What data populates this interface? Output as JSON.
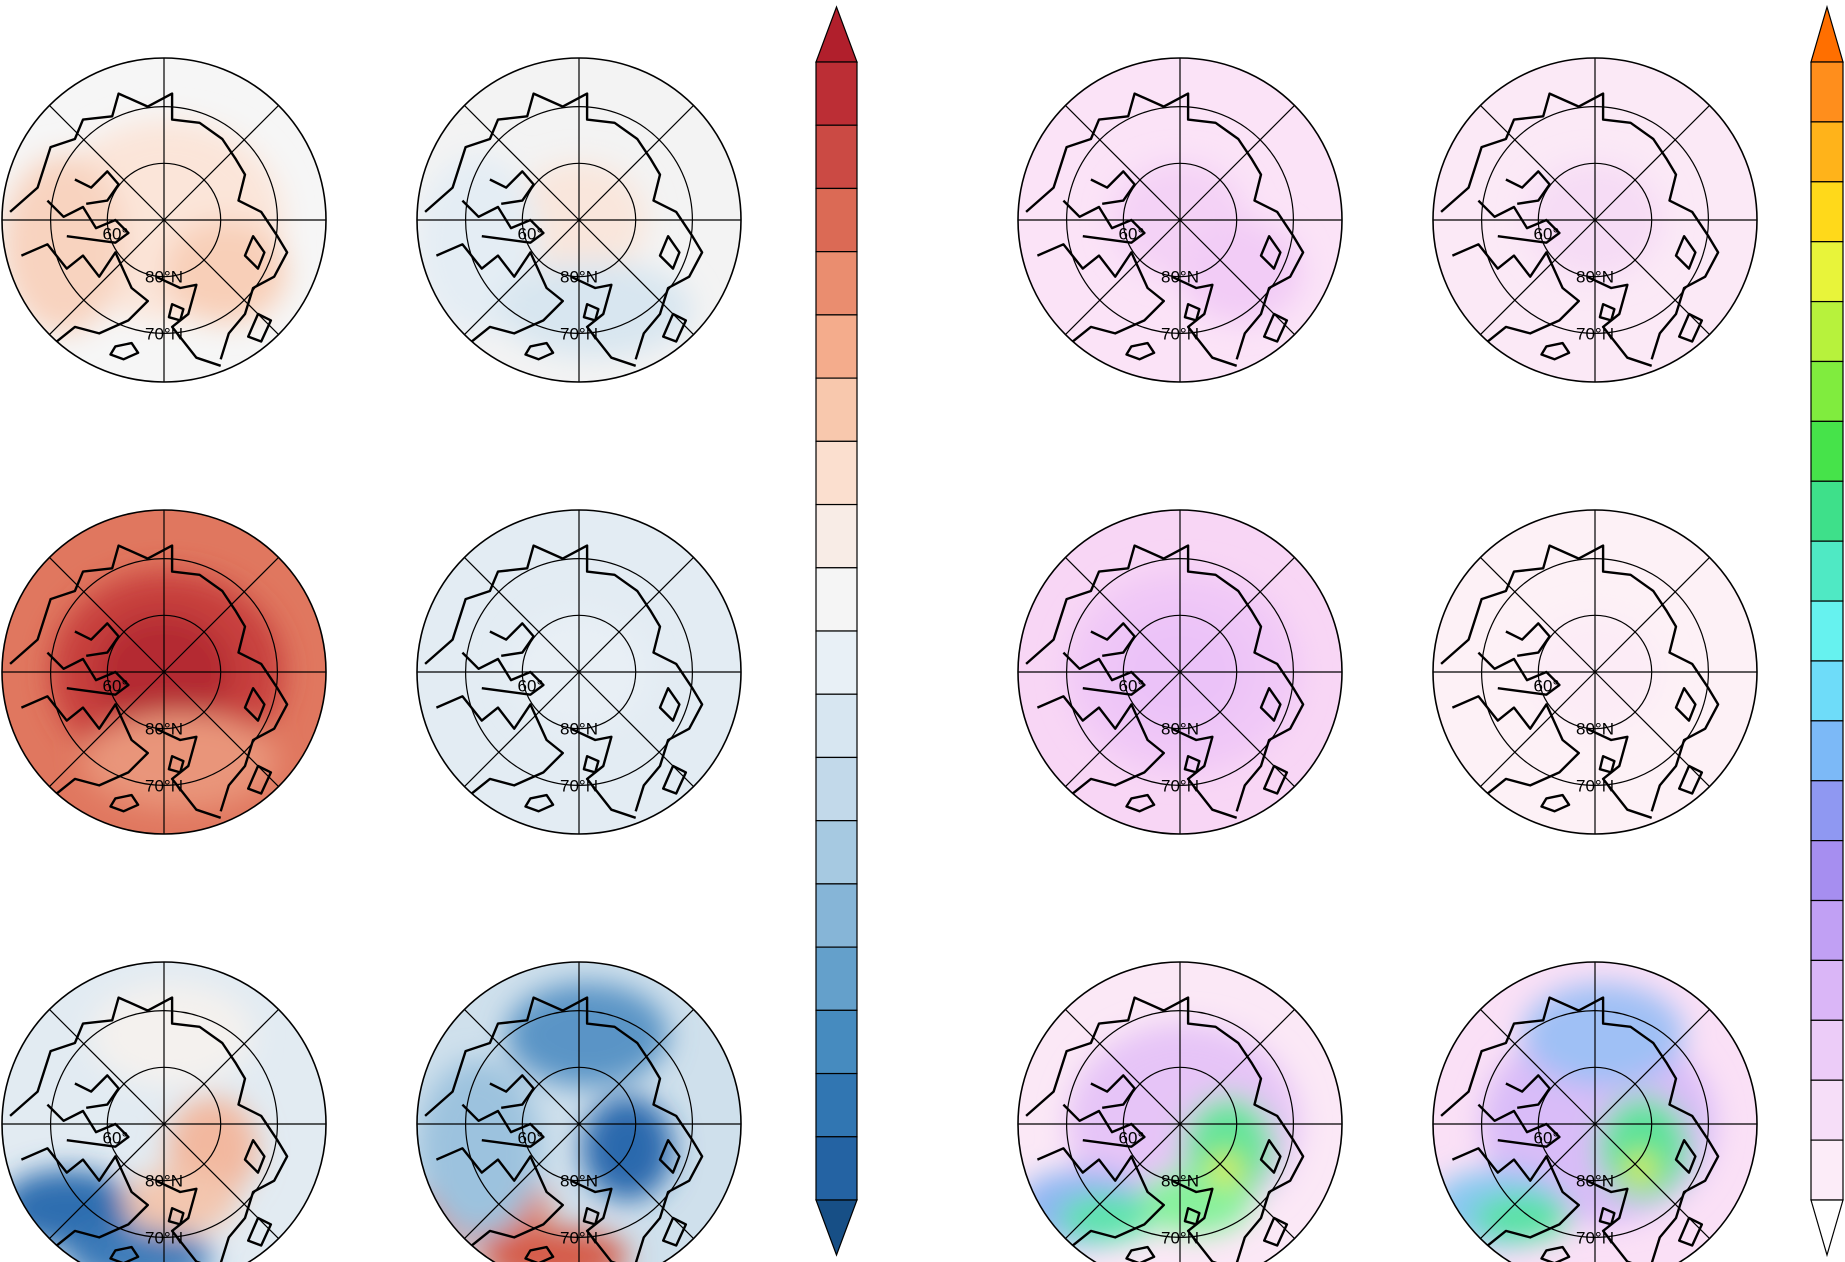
{
  "labels": {
    "lat_80": "80°N",
    "lat_70": "70°N",
    "lat_60": "60°"
  },
  "panels": [
    {
      "id": "r1c1",
      "row": 1,
      "col": 1,
      "scale": "diverging",
      "base": "#f6f6f6",
      "blobs": [
        {
          "pos": "center",
          "color": "#f9d8c6"
        },
        {
          "pos": "center-wide",
          "color": "#fbe5d9"
        },
        {
          "pos": "left",
          "color": "#f8d3bf"
        },
        {
          "pos": "lower-right",
          "color": "#f8cfb8"
        }
      ]
    },
    {
      "id": "r1c2",
      "row": 1,
      "col": 2,
      "scale": "diverging",
      "base": "#f3f3f3",
      "blobs": [
        {
          "pos": "center",
          "color": "#f9e6dc"
        },
        {
          "pos": "left",
          "color": "#e4edf4"
        },
        {
          "pos": "lower",
          "color": "#d8e6f0"
        }
      ]
    },
    {
      "id": "r2c1",
      "row": 2,
      "col": 1,
      "scale": "diverging",
      "base": "#e0775f",
      "blobs": [
        {
          "pos": "center-wide",
          "color": "#c7413d"
        },
        {
          "pos": "center",
          "color": "#b42a30"
        },
        {
          "pos": "lower",
          "color": "#e9957a"
        }
      ]
    },
    {
      "id": "r2c2",
      "row": 2,
      "col": 2,
      "scale": "diverging",
      "base": "#e3ecf3",
      "blobs": [
        {
          "pos": "center",
          "color": "#e8eff5"
        }
      ]
    },
    {
      "id": "r3c1",
      "row": 3,
      "col": 1,
      "scale": "diverging",
      "base": "#e2ebf2",
      "blobs": [
        {
          "pos": "top",
          "color": "#f4f1ee"
        },
        {
          "pos": "lower-left",
          "color": "#2f6eb0"
        },
        {
          "pos": "bottom",
          "color": "#3c7bb9"
        },
        {
          "pos": "center-right",
          "color": "#f2b89f"
        },
        {
          "pos": "lower-mid",
          "color": "#f3c6af"
        }
      ]
    },
    {
      "id": "r3c2",
      "row": 3,
      "col": 2,
      "scale": "diverging",
      "base": "#cfe0ec",
      "blobs": [
        {
          "pos": "top",
          "color": "#5a94c6"
        },
        {
          "pos": "center-right",
          "color": "#2c69ad"
        },
        {
          "pos": "lower-left",
          "color": "#e17d62"
        },
        {
          "pos": "bottom",
          "color": "#d55b48"
        },
        {
          "pos": "left",
          "color": "#9cc2de"
        }
      ]
    },
    {
      "id": "r1c3",
      "row": 1,
      "col": 3,
      "scale": "rainbow",
      "base": "#fbe3f7",
      "blobs": [
        {
          "pos": "center",
          "color": "#f4d2f6"
        },
        {
          "pos": "lower-right",
          "color": "#f2ccf6"
        }
      ]
    },
    {
      "id": "r1c4",
      "row": 1,
      "col": 4,
      "scale": "rainbow",
      "base": "#fbe9f6",
      "blobs": [
        {
          "pos": "center",
          "color": "#f6dcf5"
        }
      ]
    },
    {
      "id": "r2c3",
      "row": 2,
      "col": 3,
      "scale": "rainbow",
      "base": "#f8d6f5",
      "blobs": [
        {
          "pos": "center-wide",
          "color": "#f0c8f7"
        },
        {
          "pos": "center",
          "color": "#ebc2f8"
        }
      ]
    },
    {
      "id": "r2c4",
      "row": 2,
      "col": 4,
      "scale": "rainbow",
      "base": "#fdf1f6",
      "blobs": [
        {
          "pos": "center",
          "color": "#fcecf6"
        }
      ]
    },
    {
      "id": "r3c3",
      "row": 3,
      "col": 3,
      "scale": "rainbow",
      "base": "#fbe8f6",
      "blobs": [
        {
          "pos": "center-wide",
          "color": "#e6c4f7"
        },
        {
          "pos": "lower-left",
          "color": "#8fb5f3"
        },
        {
          "pos": "lower-left-inner",
          "color": "#5ae5a8"
        },
        {
          "pos": "center-right",
          "color": "#63e49a"
        },
        {
          "pos": "lower-mid",
          "color": "#86f19b"
        },
        {
          "pos": "hotspot",
          "color": "#e5ec3a"
        }
      ]
    },
    {
      "id": "r3c4",
      "row": 3,
      "col": 4,
      "scale": "rainbow",
      "base": "#fae0f6",
      "blobs": [
        {
          "pos": "center-wide",
          "color": "#d9bcf8"
        },
        {
          "pos": "top",
          "color": "#9fc0f5"
        },
        {
          "pos": "lower-left",
          "color": "#88c7f1"
        },
        {
          "pos": "lower-left-inner",
          "color": "#57e3a0"
        },
        {
          "pos": "center-right",
          "color": "#5ce29a"
        },
        {
          "pos": "hotspot",
          "color": "#e3ea3c"
        }
      ]
    }
  ],
  "colorbars": [
    {
      "id": "diverging",
      "top_color": "#b11f2c",
      "bottom_color": "#174f86",
      "levels": [
        "#bc2e35",
        "#cb4a44",
        "#db6a55",
        "#ea8d6f",
        "#f4ac8c",
        "#f8c8ad",
        "#fbdfcf",
        "#f8ece6",
        "#f5f5f5",
        "#e8f0f6",
        "#d7e6f1",
        "#c2d9ea",
        "#a6c9e1",
        "#86b5d7",
        "#64a0cb",
        "#468bbf",
        "#3176b2",
        "#2463a3"
      ]
    },
    {
      "id": "rainbow",
      "top_color": "#ff6f00",
      "bottom_color": "#ffffff",
      "levels": [
        "#ff8e1c",
        "#ffb31a",
        "#ffd91a",
        "#e8f43a",
        "#b7f23c",
        "#80ec3e",
        "#46e34a",
        "#3ee08a",
        "#4fe9c4",
        "#66f2ef",
        "#6edcf9",
        "#7cb9f7",
        "#8f98f2",
        "#a68ef0",
        "#c1a0f4",
        "#dab6f7",
        "#ecccf8",
        "#f6def8",
        "#fcecf8"
      ]
    }
  ]
}
